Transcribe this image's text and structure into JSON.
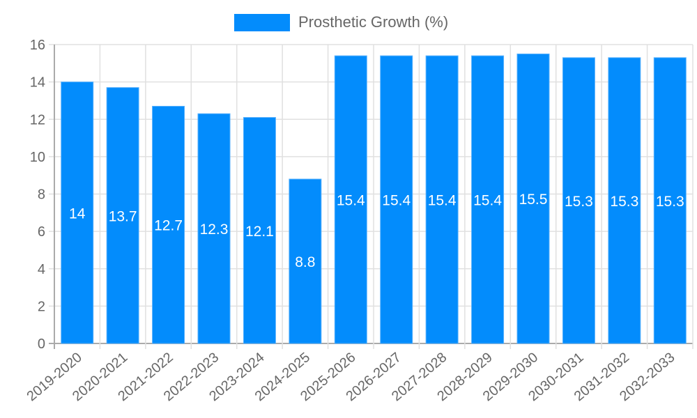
{
  "legend": {
    "label": "Prosthetic Growth (%)",
    "color": "#038cfc"
  },
  "chart_data": {
    "type": "bar",
    "title": "",
    "xlabel": "",
    "ylabel": "",
    "ylim": [
      0,
      16
    ],
    "yticks": [
      0,
      2,
      4,
      6,
      8,
      10,
      12,
      14,
      16
    ],
    "grid": true,
    "legend_position": "top",
    "categories": [
      "2019-2020",
      "2020-2021",
      "2021-2022",
      "2022-2023",
      "2023-2024",
      "2024-2025",
      "2025-2026",
      "2026-2027",
      "2027-2028",
      "2028-2029",
      "2029-2030",
      "2030-2031",
      "2031-2032",
      "2032-2033"
    ],
    "series": [
      {
        "name": "Prosthetic Growth (%)",
        "color": "#038cfc",
        "values": [
          14,
          13.7,
          12.7,
          12.3,
          12.1,
          8.8,
          15.4,
          15.4,
          15.4,
          15.4,
          15.5,
          15.3,
          15.3,
          15.3
        ]
      }
    ],
    "data_labels": true
  }
}
